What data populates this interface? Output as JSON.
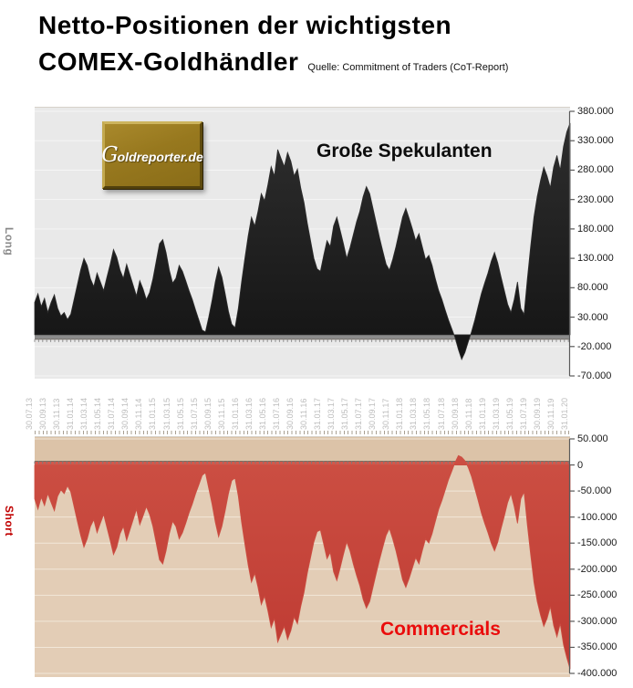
{
  "header": {
    "title_line1": "Netto-Positionen der wichtigsten",
    "title_line2": "COMEX-Goldhändler",
    "source": "Quelle: Commitment of Traders (CoT-Report)"
  },
  "logo": {
    "text_g": "G",
    "text_rest": "oldreporter.de"
  },
  "axis_dates": [
    "30.07.13",
    "30.09.13",
    "30.11.13",
    "31.01.14",
    "31.03.14",
    "31.05.14",
    "31.07.14",
    "30.09.14",
    "30.11.14",
    "31.01.15",
    "31.03.15",
    "31.05.15",
    "31.07.15",
    "30.09.15",
    "30.11.15",
    "31.01.16",
    "31.03.16",
    "31.05.16",
    "31.07.16",
    "30.09.16",
    "30.11.16",
    "31.01.17",
    "31.03.17",
    "31.05.17",
    "31.07.17",
    "30.09.17",
    "30.11.17",
    "31.01.18",
    "31.03.18",
    "31.05.18",
    "31.07.18",
    "30.09.18",
    "30.11.18",
    "31.01.19",
    "31.03.19",
    "31.05.19",
    "31.07.19",
    "30.09.19",
    "30.11.19",
    "31.01.20"
  ],
  "chart_data": [
    {
      "type": "area",
      "title": "Große Spekulanten",
      "side_label": "Long",
      "unit": "contracts (net position)",
      "ylim": [
        -70000,
        380000
      ],
      "ytick_step": 50000,
      "ytick_labels": [
        "380.000",
        "330.000",
        "280.000",
        "230.000",
        "180.000",
        "130.000",
        "80.000",
        "30.000",
        "-20.000",
        "-70.000"
      ],
      "x_range": [
        "30.07.13",
        "31.01.20"
      ],
      "grid": true,
      "colors": {
        "fill": "#141414",
        "fill_top": "#2e2e2e",
        "bg": "#e9e9e9",
        "grid": "#f5f5f5",
        "zero_band": "#8c8c8c",
        "zero_tick": "#8f8f8f",
        "axis": "#5a5a5a"
      },
      "values": [
        55000,
        70000,
        48000,
        62000,
        38000,
        55000,
        68000,
        45000,
        32000,
        38000,
        26000,
        35000,
        60000,
        85000,
        110000,
        130000,
        118000,
        95000,
        82000,
        105000,
        90000,
        75000,
        98000,
        120000,
        145000,
        132000,
        110000,
        96000,
        120000,
        102000,
        84000,
        66000,
        92000,
        78000,
        60000,
        72000,
        95000,
        125000,
        155000,
        162000,
        140000,
        110000,
        88000,
        96000,
        118000,
        108000,
        92000,
        75000,
        60000,
        42000,
        25000,
        8000,
        5000,
        30000,
        58000,
        90000,
        115000,
        98000,
        70000,
        40000,
        18000,
        12000,
        45000,
        90000,
        130000,
        168000,
        200000,
        185000,
        210000,
        240000,
        228000,
        255000,
        286000,
        270000,
        315000,
        300000,
        286000,
        310000,
        295000,
        270000,
        282000,
        250000,
        225000,
        190000,
        160000,
        130000,
        112000,
        108000,
        135000,
        160000,
        150000,
        185000,
        200000,
        178000,
        155000,
        130000,
        148000,
        170000,
        192000,
        210000,
        235000,
        252000,
        240000,
        215000,
        190000,
        165000,
        142000,
        120000,
        110000,
        128000,
        150000,
        175000,
        200000,
        215000,
        198000,
        180000,
        160000,
        172000,
        150000,
        128000,
        135000,
        118000,
        95000,
        75000,
        60000,
        42000,
        25000,
        10000,
        -5000,
        -25000,
        -42000,
        -30000,
        -12000,
        5000,
        25000,
        48000,
        70000,
        88000,
        105000,
        125000,
        140000,
        122000,
        98000,
        75000,
        52000,
        38000,
        60000,
        90000,
        45000,
        35000,
        95000,
        150000,
        200000,
        235000,
        262000,
        285000,
        270000,
        250000,
        285000,
        305000,
        280000,
        320000,
        345000,
        360000
      ]
    },
    {
      "type": "area",
      "title": "Commercials",
      "side_label": "Short",
      "unit": "contracts (net position)",
      "ylim": [
        -400000,
        50000
      ],
      "ytick_step": 50000,
      "ytick_labels": [
        "50.000",
        "0",
        "-50.000",
        "-100.000",
        "-150.000",
        "-200.000",
        "-250.000",
        "-300.000",
        "-350.000",
        "-400.000"
      ],
      "x_range": [
        "30.07.13",
        "31.01.20"
      ],
      "x_tick_labels_note": "same dates as first chart",
      "grid": true,
      "colors": {
        "fill": "#be3a32",
        "fill_top": "#cc4f43",
        "bg": "#e3cdb6",
        "bg_above_zero": "#dcc3a8",
        "grid": "#f2e7d9",
        "zero_band": "#d4574a",
        "zero_tick": "#7a7a7a",
        "axis": "#5a5a5a"
      },
      "values": [
        -65000,
        -85000,
        -62000,
        -78000,
        -55000,
        -72000,
        -88000,
        -60000,
        -48000,
        -55000,
        -40000,
        -52000,
        -80000,
        -108000,
        -135000,
        -158000,
        -142000,
        -118000,
        -105000,
        -130000,
        -112000,
        -95000,
        -120000,
        -145000,
        -172000,
        -158000,
        -132000,
        -118000,
        -145000,
        -125000,
        -105000,
        -85000,
        -115000,
        -98000,
        -80000,
        -95000,
        -118000,
        -150000,
        -182000,
        -190000,
        -165000,
        -132000,
        -108000,
        -118000,
        -142000,
        -130000,
        -112000,
        -92000,
        -75000,
        -55000,
        -38000,
        -20000,
        -15000,
        -45000,
        -75000,
        -110000,
        -138000,
        -118000,
        -88000,
        -55000,
        -30000,
        -25000,
        -60000,
        -110000,
        -152000,
        -192000,
        -225000,
        -208000,
        -235000,
        -268000,
        -252000,
        -280000,
        -312000,
        -295000,
        -340000,
        -325000,
        -310000,
        -335000,
        -318000,
        -292000,
        -305000,
        -272000,
        -245000,
        -208000,
        -178000,
        -148000,
        -128000,
        -125000,
        -152000,
        -180000,
        -168000,
        -205000,
        -222000,
        -198000,
        -172000,
        -148000,
        -165000,
        -190000,
        -212000,
        -232000,
        -258000,
        -275000,
        -262000,
        -235000,
        -208000,
        -182000,
        -158000,
        -135000,
        -122000,
        -142000,
        -165000,
        -192000,
        -220000,
        -235000,
        -218000,
        -198000,
        -178000,
        -190000,
        -165000,
        -142000,
        -150000,
        -132000,
        -108000,
        -85000,
        -68000,
        -48000,
        -28000,
        -12000,
        5000,
        18000,
        15000,
        8000,
        -5000,
        -22000,
        -45000,
        -68000,
        -92000,
        -112000,
        -130000,
        -150000,
        -165000,
        -148000,
        -122000,
        -98000,
        -72000,
        -55000,
        -80000,
        -112000,
        -65000,
        -52000,
        -115000,
        -172000,
        -225000,
        -262000,
        -288000,
        -310000,
        -295000,
        -272000,
        -308000,
        -330000,
        -305000,
        -345000,
        -370000,
        -392000
      ]
    }
  ]
}
